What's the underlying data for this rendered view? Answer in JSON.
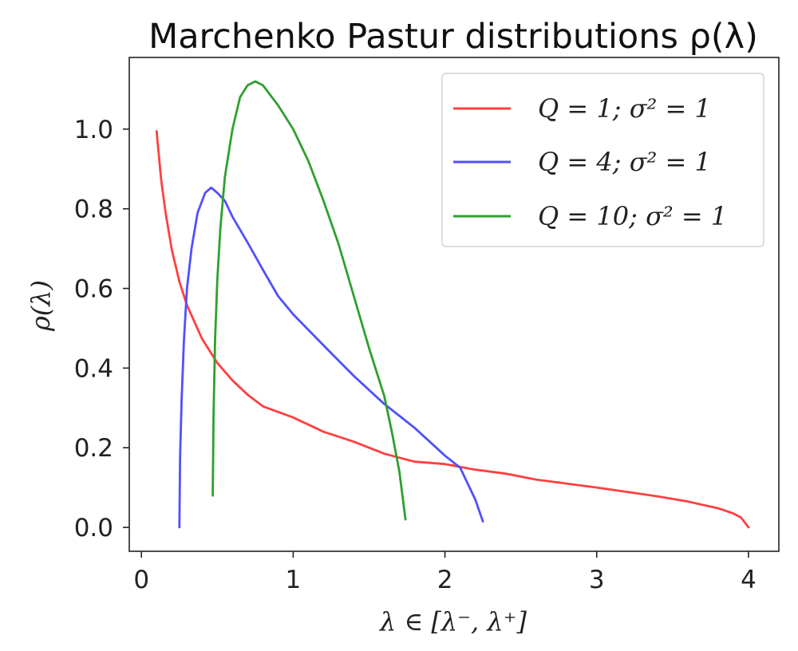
{
  "chart_data": {
    "type": "line",
    "title": "Marchenko Pastur distributions ρ(λ)",
    "xlabel": "λ ∈ [λ⁻, λ⁺]",
    "ylabel": "ρ(λ)",
    "xlim": [
      -0.08,
      4.2
    ],
    "ylim": [
      -0.06,
      1.18
    ],
    "xticks": [
      0,
      1,
      2,
      3,
      4
    ],
    "yticks": [
      0.0,
      0.2,
      0.4,
      0.6,
      0.8,
      1.0
    ],
    "xtick_labels": [
      "0",
      "1",
      "2",
      "3",
      "4"
    ],
    "ytick_labels": [
      "0.0",
      "0.2",
      "0.4",
      "0.6",
      "0.8",
      "1.0"
    ],
    "grid": false,
    "legend": "top-right",
    "series": [
      {
        "name": "Q = 1; σ² = 1",
        "color": "#ff4040",
        "x": [
          0.1,
          0.13,
          0.16,
          0.2,
          0.25,
          0.3,
          0.4,
          0.5,
          0.6,
          0.7,
          0.8,
          1.0,
          1.2,
          1.4,
          1.6,
          1.8,
          2.0,
          2.2,
          2.4,
          2.6,
          2.8,
          3.0,
          3.2,
          3.4,
          3.6,
          3.8,
          3.9,
          3.95,
          4.0
        ],
        "y": [
          0.995,
          0.874,
          0.789,
          0.697,
          0.617,
          0.558,
          0.473,
          0.413,
          0.369,
          0.333,
          0.304,
          0.276,
          0.24,
          0.215,
          0.185,
          0.165,
          0.159,
          0.145,
          0.135,
          0.12,
          0.11,
          0.1,
          0.089,
          0.078,
          0.065,
          0.048,
          0.035,
          0.025,
          0.0
        ]
      },
      {
        "name": "Q = 4; σ² = 1",
        "color": "#5050ff",
        "x": [
          0.25,
          0.255,
          0.265,
          0.28,
          0.3,
          0.33,
          0.37,
          0.42,
          0.46,
          0.5,
          0.55,
          0.6,
          0.7,
          0.8,
          0.9,
          1.0,
          1.2,
          1.4,
          1.6,
          1.8,
          2.0,
          2.1,
          2.15,
          2.2,
          2.25
        ],
        "y": [
          0.0,
          0.18,
          0.32,
          0.47,
          0.6,
          0.7,
          0.79,
          0.84,
          0.853,
          0.84,
          0.82,
          0.78,
          0.715,
          0.647,
          0.581,
          0.535,
          0.457,
          0.38,
          0.31,
          0.25,
          0.18,
          0.15,
          0.11,
          0.07,
          0.015
        ]
      },
      {
        "name": "Q = 10; σ² = 1",
        "color": "#2ea02e",
        "x": [
          0.47,
          0.475,
          0.485,
          0.5,
          0.52,
          0.55,
          0.6,
          0.65,
          0.7,
          0.75,
          0.8,
          0.9,
          1.0,
          1.1,
          1.2,
          1.3,
          1.4,
          1.5,
          1.6,
          1.65,
          1.7,
          1.72,
          1.74
        ],
        "y": [
          0.08,
          0.28,
          0.47,
          0.62,
          0.75,
          0.88,
          1.0,
          1.08,
          1.11,
          1.12,
          1.11,
          1.06,
          1.0,
          0.92,
          0.82,
          0.71,
          0.58,
          0.45,
          0.33,
          0.24,
          0.14,
          0.08,
          0.02
        ]
      }
    ]
  }
}
